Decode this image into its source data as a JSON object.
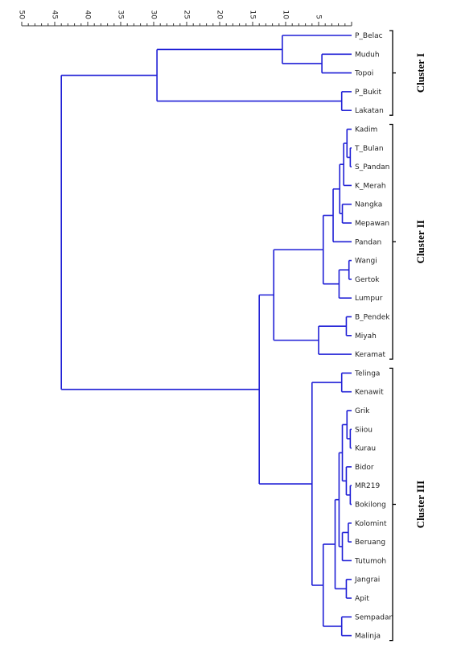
{
  "axis": {
    "ticks": [
      50,
      45,
      40,
      35,
      30,
      25,
      20,
      15,
      10,
      5
    ],
    "range": [
      50,
      0
    ]
  },
  "leaves": [
    "P_Belac",
    "Muduh",
    "Topoi",
    "P_Bukit",
    "Lakatan",
    "Kadim",
    "T_Bulan",
    "S_Pandan",
    "K_Merah",
    "Nangka",
    "Mepawan",
    "Pandan",
    "Wangi",
    "Gertok",
    "Lumpur",
    "B_Pendek",
    "Miyah",
    "Keramat",
    "Telinga",
    "Kenawit",
    "Grik",
    "Siiou",
    "Kurau",
    "Bidor",
    "MR219",
    "Bokilong",
    "Kolomint",
    "Beruang",
    "Tutumoh",
    "Jangrai",
    "Apit",
    "Sempadan",
    "Malinja"
  ],
  "merges": [
    {
      "a": "Muduh",
      "b": "Topoi",
      "h": 4.5
    },
    {
      "a": "P_Belac",
      "b": "Muduh",
      "h": 10.5
    },
    {
      "a": "P_Bukit",
      "b": "Lakatan",
      "h": 1.5
    },
    {
      "a": "P_Belac",
      "b": "P_Bukit",
      "h": 29.5
    },
    {
      "a": "T_Bulan",
      "b": "S_Pandan",
      "h": 0.2
    },
    {
      "a": "Kadim",
      "b": "T_Bulan",
      "h": 0.7
    },
    {
      "a": "Kadim",
      "b": "K_Merah",
      "h": 1.2
    },
    {
      "a": "Nangka",
      "b": "Mepawan",
      "h": 1.4
    },
    {
      "a": "Kadim",
      "b": "Nangka",
      "h": 1.8
    },
    {
      "a": "Kadim",
      "b": "Pandan",
      "h": 2.8
    },
    {
      "a": "Wangi",
      "b": "Gertok",
      "h": 0.4
    },
    {
      "a": "Wangi",
      "b": "Lumpur",
      "h": 1.9
    },
    {
      "a": "Kadim",
      "b": "Wangi",
      "h": 4.3
    },
    {
      "a": "B_Pendek",
      "b": "Miyah",
      "h": 0.8
    },
    {
      "a": "B_Pendek",
      "b": "Keramat",
      "h": 5.0
    },
    {
      "a": "Kadim",
      "b": "B_Pendek",
      "h": 11.8
    },
    {
      "a": "Telinga",
      "b": "Kenawit",
      "h": 1.5
    },
    {
      "a": "Siiou",
      "b": "Kurau",
      "h": 0.2
    },
    {
      "a": "Grik",
      "b": "Siiou",
      "h": 0.7
    },
    {
      "a": "MR219",
      "b": "Bokilong",
      "h": 0.2
    },
    {
      "a": "Bidor",
      "b": "MR219",
      "h": 0.8
    },
    {
      "a": "Grik",
      "b": "Bidor",
      "h": 1.4
    },
    {
      "a": "Kolomint",
      "b": "Beruang",
      "h": 0.5
    },
    {
      "a": "Kolomint",
      "b": "Tutumoh",
      "h": 1.4
    },
    {
      "a": "Grik",
      "b": "Kolomint",
      "h": 1.9
    },
    {
      "a": "Jangrai",
      "b": "Apit",
      "h": 0.8
    },
    {
      "a": "Grik",
      "b": "Jangrai",
      "h": 2.5
    },
    {
      "a": "Sempadan",
      "b": "Malinja",
      "h": 1.5
    },
    {
      "a": "Grik",
      "b": "Sempadan",
      "h": 4.3
    },
    {
      "a": "Telinga",
      "b": "Grik",
      "h": 6.0
    },
    {
      "a": "Kadim",
      "b": "Telinga",
      "h": 14.0
    },
    {
      "a": "P_Belac",
      "b": "Kadim",
      "h": 44.0
    }
  ],
  "clusters": [
    {
      "label": "Cluster I",
      "from": "P_Belac",
      "to": "Lakatan"
    },
    {
      "label": "Cluster II",
      "from": "Kadim",
      "to": "Keramat"
    },
    {
      "label": "Cluster III",
      "from": "Telinga",
      "to": "Malinja"
    }
  ],
  "colors": {
    "branch": "#1f1fd6",
    "axis": "#333333",
    "bracket": "#000000"
  }
}
